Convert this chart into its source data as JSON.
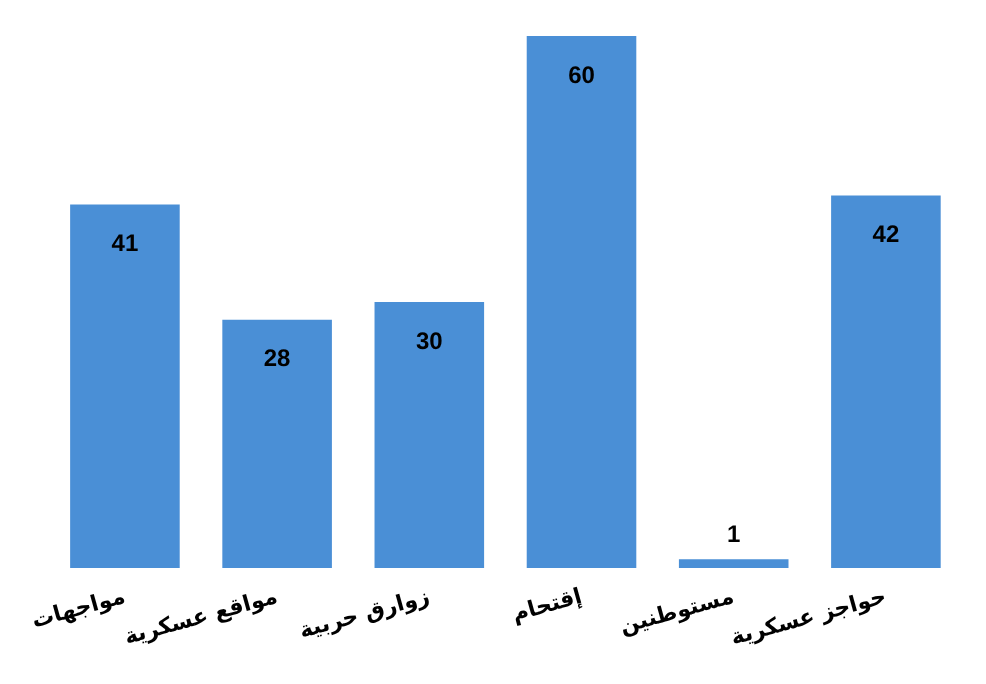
{
  "chart_data": {
    "type": "bar",
    "categories": [
      "مواجهات",
      "مواقع عسكرية",
      "زوارق حربية",
      "إقتحام",
      "مستوطنين",
      "حواجز عسكرية"
    ],
    "values": [
      41,
      28,
      30,
      60,
      1,
      42
    ],
    "color": "#4a8fd6",
    "data_labels": true,
    "grid": false,
    "legend": false
  }
}
